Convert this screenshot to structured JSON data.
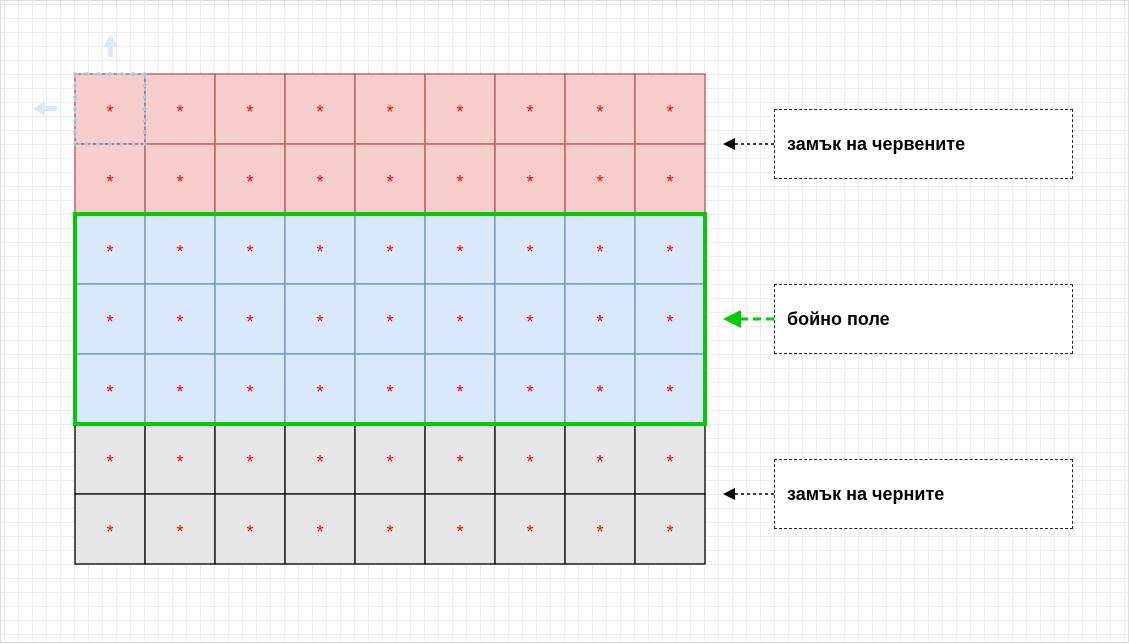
{
  "grid": {
    "columns": 9,
    "cell_symbol": "*",
    "star_color": "#ff0000",
    "zones": [
      {
        "id": "red-castle",
        "rows": 2,
        "fill": "#f8cecc",
        "stroke": "#b85450"
      },
      {
        "id": "battlefield",
        "rows": 3,
        "fill": "#dae8fc",
        "stroke": "#6c8ebf",
        "outline": "#00cc00"
      },
      {
        "id": "black-castle",
        "rows": 2,
        "fill": "#e6e6e6",
        "stroke": "#000000"
      }
    ]
  },
  "labels": {
    "red_castle": "замък на червените",
    "battlefield": "бойно поле",
    "black_castle": "замък на черните"
  },
  "colors": {
    "battlefield_arrow": "#00cc00",
    "castle_arrow": "#000000",
    "selection_handle": "#9ec9f0"
  }
}
